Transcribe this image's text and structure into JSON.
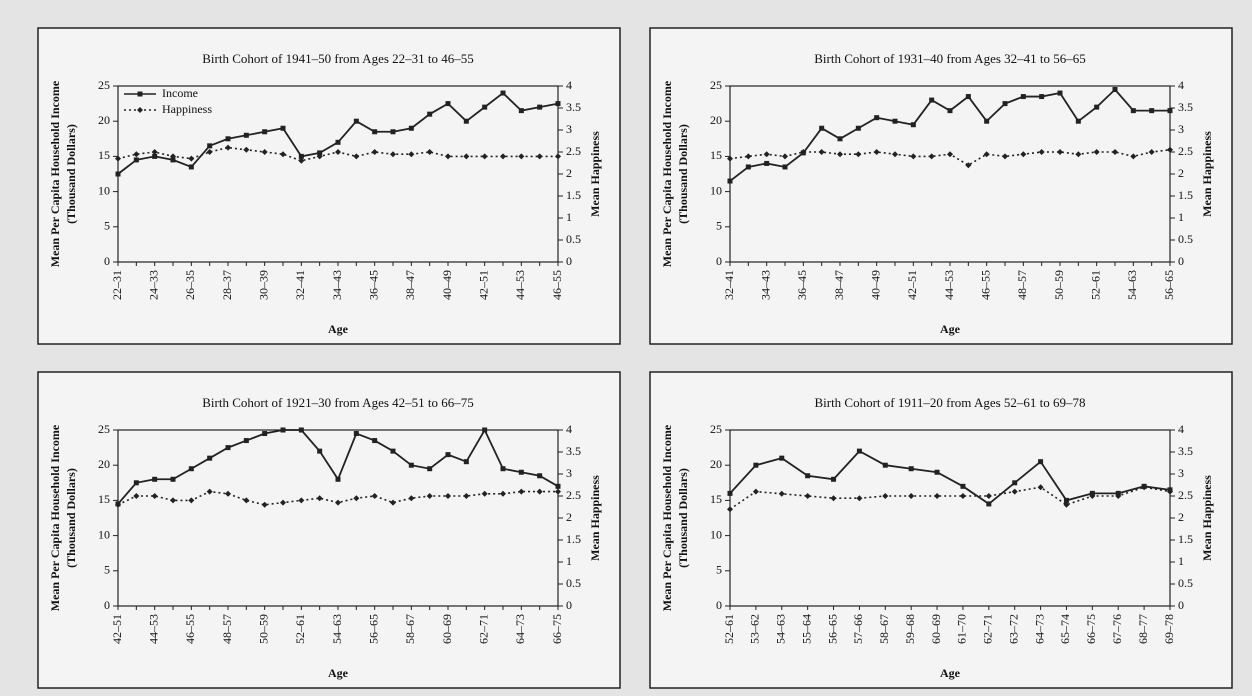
{
  "chart_data": [
    {
      "type": "line",
      "title": "Birth Cohort of 1941–50 from Ages 22–31 to 46–55",
      "xlabel": "Age",
      "ylabel": [
        "Mean Per Capita Household Income",
        "(Thousand Dollars)"
      ],
      "y2label": "Mean Happiness",
      "categories": [
        "22–31",
        null,
        "24–33",
        null,
        "26–35",
        null,
        "28–37",
        null,
        "30–39",
        null,
        "32–41",
        null,
        "34–43",
        null,
        "36–45",
        null,
        "38–47",
        null,
        "40–49",
        null,
        "42–51",
        null,
        "44–53",
        null,
        "46–55"
      ],
      "series": [
        {
          "name": "Income",
          "color": "#222222",
          "values": [
            12.5,
            14.5,
            15,
            14.5,
            13.5,
            16.5,
            17.5,
            18,
            18.5,
            19,
            15,
            15.5,
            17,
            20,
            18.5,
            18.5,
            19,
            21,
            22.5,
            20,
            22,
            24,
            21.5,
            22,
            22.5
          ]
        },
        {
          "name": "Happiness",
          "color": "#222222",
          "axis": "y2",
          "values": [
            2.35,
            2.45,
            2.5,
            2.4,
            2.35,
            2.5,
            2.6,
            2.55,
            2.5,
            2.45,
            2.3,
            2.4,
            2.5,
            2.4,
            2.5,
            2.45,
            2.45,
            2.5,
            2.4,
            2.4,
            2.4,
            2.4,
            2.4,
            2.4,
            2.4
          ]
        }
      ],
      "ylim": [
        0,
        25
      ],
      "yticks": [
        0,
        5,
        10,
        15,
        20,
        25
      ],
      "y2lim": [
        0,
        4
      ],
      "y2ticks": [
        0,
        0.5,
        1,
        1.5,
        2,
        2.5,
        3,
        3.5,
        4
      ],
      "legend": "upper left"
    },
    {
      "type": "line",
      "title": "Birth Cohort of 1931–40 from Ages 32–41 to 56–65",
      "xlabel": "Age",
      "ylabel": [
        "Mean Per Capita Household Income",
        "(Thousand Dollars)"
      ],
      "y2label": "Mean Happiness",
      "categories": [
        "32–41",
        null,
        "34–43",
        null,
        "36–45",
        null,
        "38–47",
        null,
        "40–49",
        null,
        "42–51",
        null,
        "44–53",
        null,
        "46–55",
        null,
        "48–57",
        null,
        "50–59",
        null,
        "52–61",
        null,
        "54–63",
        null,
        "56–65"
      ],
      "series": [
        {
          "color": "#222222",
          "values": [
            11.5,
            13.5,
            14,
            13.5,
            15.5,
            19,
            17.5,
            19,
            20.5,
            20,
            19.5,
            23,
            21.5,
            23.5,
            20,
            22.5,
            23.5,
            23.5,
            24,
            20,
            22,
            24.5,
            21.5,
            21.5,
            21.5
          ]
        },
        {
          "color": "#222222",
          "axis": "y2",
          "values": [
            2.35,
            2.4,
            2.45,
            2.4,
            2.5,
            2.5,
            2.45,
            2.45,
            2.5,
            2.45,
            2.4,
            2.4,
            2.45,
            2.2,
            2.45,
            2.4,
            2.45,
            2.5,
            2.5,
            2.45,
            2.5,
            2.5,
            2.4,
            2.5,
            2.55
          ]
        }
      ],
      "ylim": [
        0,
        25
      ],
      "yticks": [
        0,
        5,
        10,
        15,
        20,
        25
      ],
      "y2lim": [
        0,
        4
      ],
      "y2ticks": [
        0,
        0.5,
        1,
        1.5,
        2,
        2.5,
        3,
        3.5,
        4
      ]
    },
    {
      "type": "line",
      "title": "Birth Cohort of 1921–30 from Ages 42–51 to 66–75",
      "xlabel": "Age",
      "ylabel": [
        "Mean Per Capita Household Income",
        "(Thousand Dollars)"
      ],
      "y2label": "Mean Happiness",
      "categories": [
        "42–51",
        null,
        "44–53",
        null,
        "46–55",
        null,
        "48–57",
        null,
        "50–59",
        null,
        "52–61",
        null,
        "54–63",
        null,
        "56–65",
        null,
        "58–67",
        null,
        "60–69",
        null,
        "62–71",
        null,
        "64–73",
        null,
        "66–75"
      ],
      "series": [
        {
          "color": "#222222",
          "values": [
            14.5,
            17.5,
            18,
            18,
            19.5,
            21,
            22.5,
            23.5,
            24.5,
            25,
            25,
            22,
            18,
            24.5,
            23.5,
            22,
            20,
            19.5,
            21.5,
            20.5,
            25,
            19.5,
            19,
            18.5,
            17
          ]
        },
        {
          "color": "#222222",
          "axis": "y2",
          "values": [
            2.3,
            2.5,
            2.5,
            2.4,
            2.4,
            2.6,
            2.55,
            2.4,
            2.3,
            2.35,
            2.4,
            2.45,
            2.35,
            2.45,
            2.5,
            2.35,
            2.45,
            2.5,
            2.5,
            2.5,
            2.55,
            2.55,
            2.6,
            2.6,
            2.6
          ]
        }
      ],
      "ylim": [
        0,
        25
      ],
      "yticks": [
        0,
        5,
        10,
        15,
        20,
        25
      ],
      "y2lim": [
        0,
        4
      ],
      "y2ticks": [
        0,
        0.5,
        1,
        1.5,
        2,
        2.5,
        3,
        3.5,
        4
      ]
    },
    {
      "type": "line",
      "title": "Birth Cohort of 1911–20 from Ages 52–61 to 69–78",
      "xlabel": "Age",
      "ylabel": [
        "Mean Per Capita Household Income",
        "(Thousand Dollars)"
      ],
      "y2label": "Mean Happiness",
      "categories": [
        "52–61",
        "53–62",
        "54–63",
        "55–64",
        "56–65",
        "57–66",
        "58–67",
        "59–68",
        "60–69",
        "61–70",
        "62–71",
        "63–72",
        "64–73",
        "65–74",
        "66–75",
        "67–76",
        "68–77",
        "69–78"
      ],
      "series": [
        {
          "color": "#222222",
          "values": [
            16,
            20,
            21,
            18.5,
            18,
            22,
            20,
            19.5,
            19,
            17,
            14.5,
            17.5,
            20.5,
            15,
            16,
            16,
            17,
            16.5
          ]
        },
        {
          "color": "#222222",
          "axis": "y2",
          "values": [
            2.2,
            2.6,
            2.55,
            2.5,
            2.45,
            2.45,
            2.5,
            2.5,
            2.5,
            2.5,
            2.5,
            2.6,
            2.7,
            2.3,
            2.5,
            2.5,
            2.7,
            2.6
          ]
        }
      ],
      "ylim": [
        0,
        25
      ],
      "yticks": [
        0,
        5,
        10,
        15,
        20,
        25
      ],
      "y2lim": [
        0,
        4
      ],
      "y2ticks": [
        0,
        0.5,
        1,
        1.5,
        2,
        2.5,
        3,
        3.5,
        4
      ]
    }
  ]
}
